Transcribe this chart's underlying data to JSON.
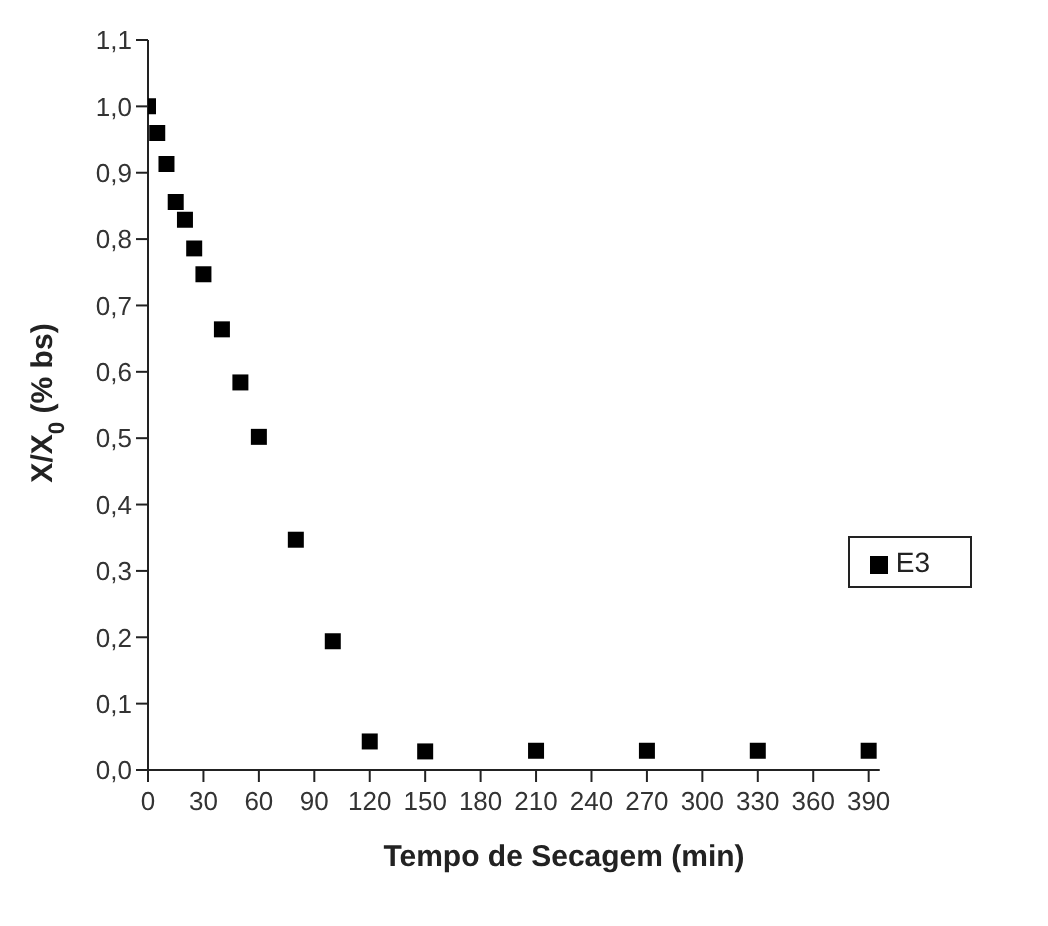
{
  "chart_data": {
    "type": "scatter",
    "xlabel": "Tempo de Secagem (min)",
    "ylabel": "X/X$_{0}$ (% bs)",
    "x": [
      0,
      5,
      10,
      15,
      20,
      25,
      30,
      40,
      50,
      60,
      80,
      100,
      120,
      150,
      210,
      270,
      330,
      390
    ],
    "series": [
      {
        "name": "E3",
        "color": "#000000",
        "values": [
          1.0,
          0.96,
          0.913,
          0.856,
          0.829,
          0.786,
          0.747,
          0.664,
          0.584,
          0.502,
          0.347,
          0.194,
          0.043,
          0.028,
          0.029,
          0.029,
          0.029,
          0.029
        ]
      }
    ],
    "xlim": [
      0,
      396
    ],
    "xticks": [
      0,
      30,
      60,
      90,
      120,
      150,
      180,
      210,
      240,
      270,
      300,
      330,
      360,
      390
    ],
    "ylim": [
      0,
      1.1
    ],
    "yticks": [
      {
        "value": 0,
        "label": "0,0"
      },
      {
        "value": 0.1,
        "label": "0,1"
      },
      {
        "value": 0.2,
        "label": "0,2"
      },
      {
        "value": 0.3,
        "label": "0,3"
      },
      {
        "value": 0.4,
        "label": "0,4"
      },
      {
        "value": 0.5,
        "label": "0,5"
      },
      {
        "value": 0.6,
        "label": "0,6"
      },
      {
        "value": 0.7,
        "label": "0,7"
      },
      {
        "value": 0.8,
        "label": "0,8"
      },
      {
        "value": 0.9,
        "label": "0,9"
      },
      {
        "value": 1.0,
        "label": "1,0"
      },
      {
        "value": 1.1,
        "label": "1,1"
      }
    ],
    "marker": "square",
    "legend": "right",
    "grid": false
  }
}
